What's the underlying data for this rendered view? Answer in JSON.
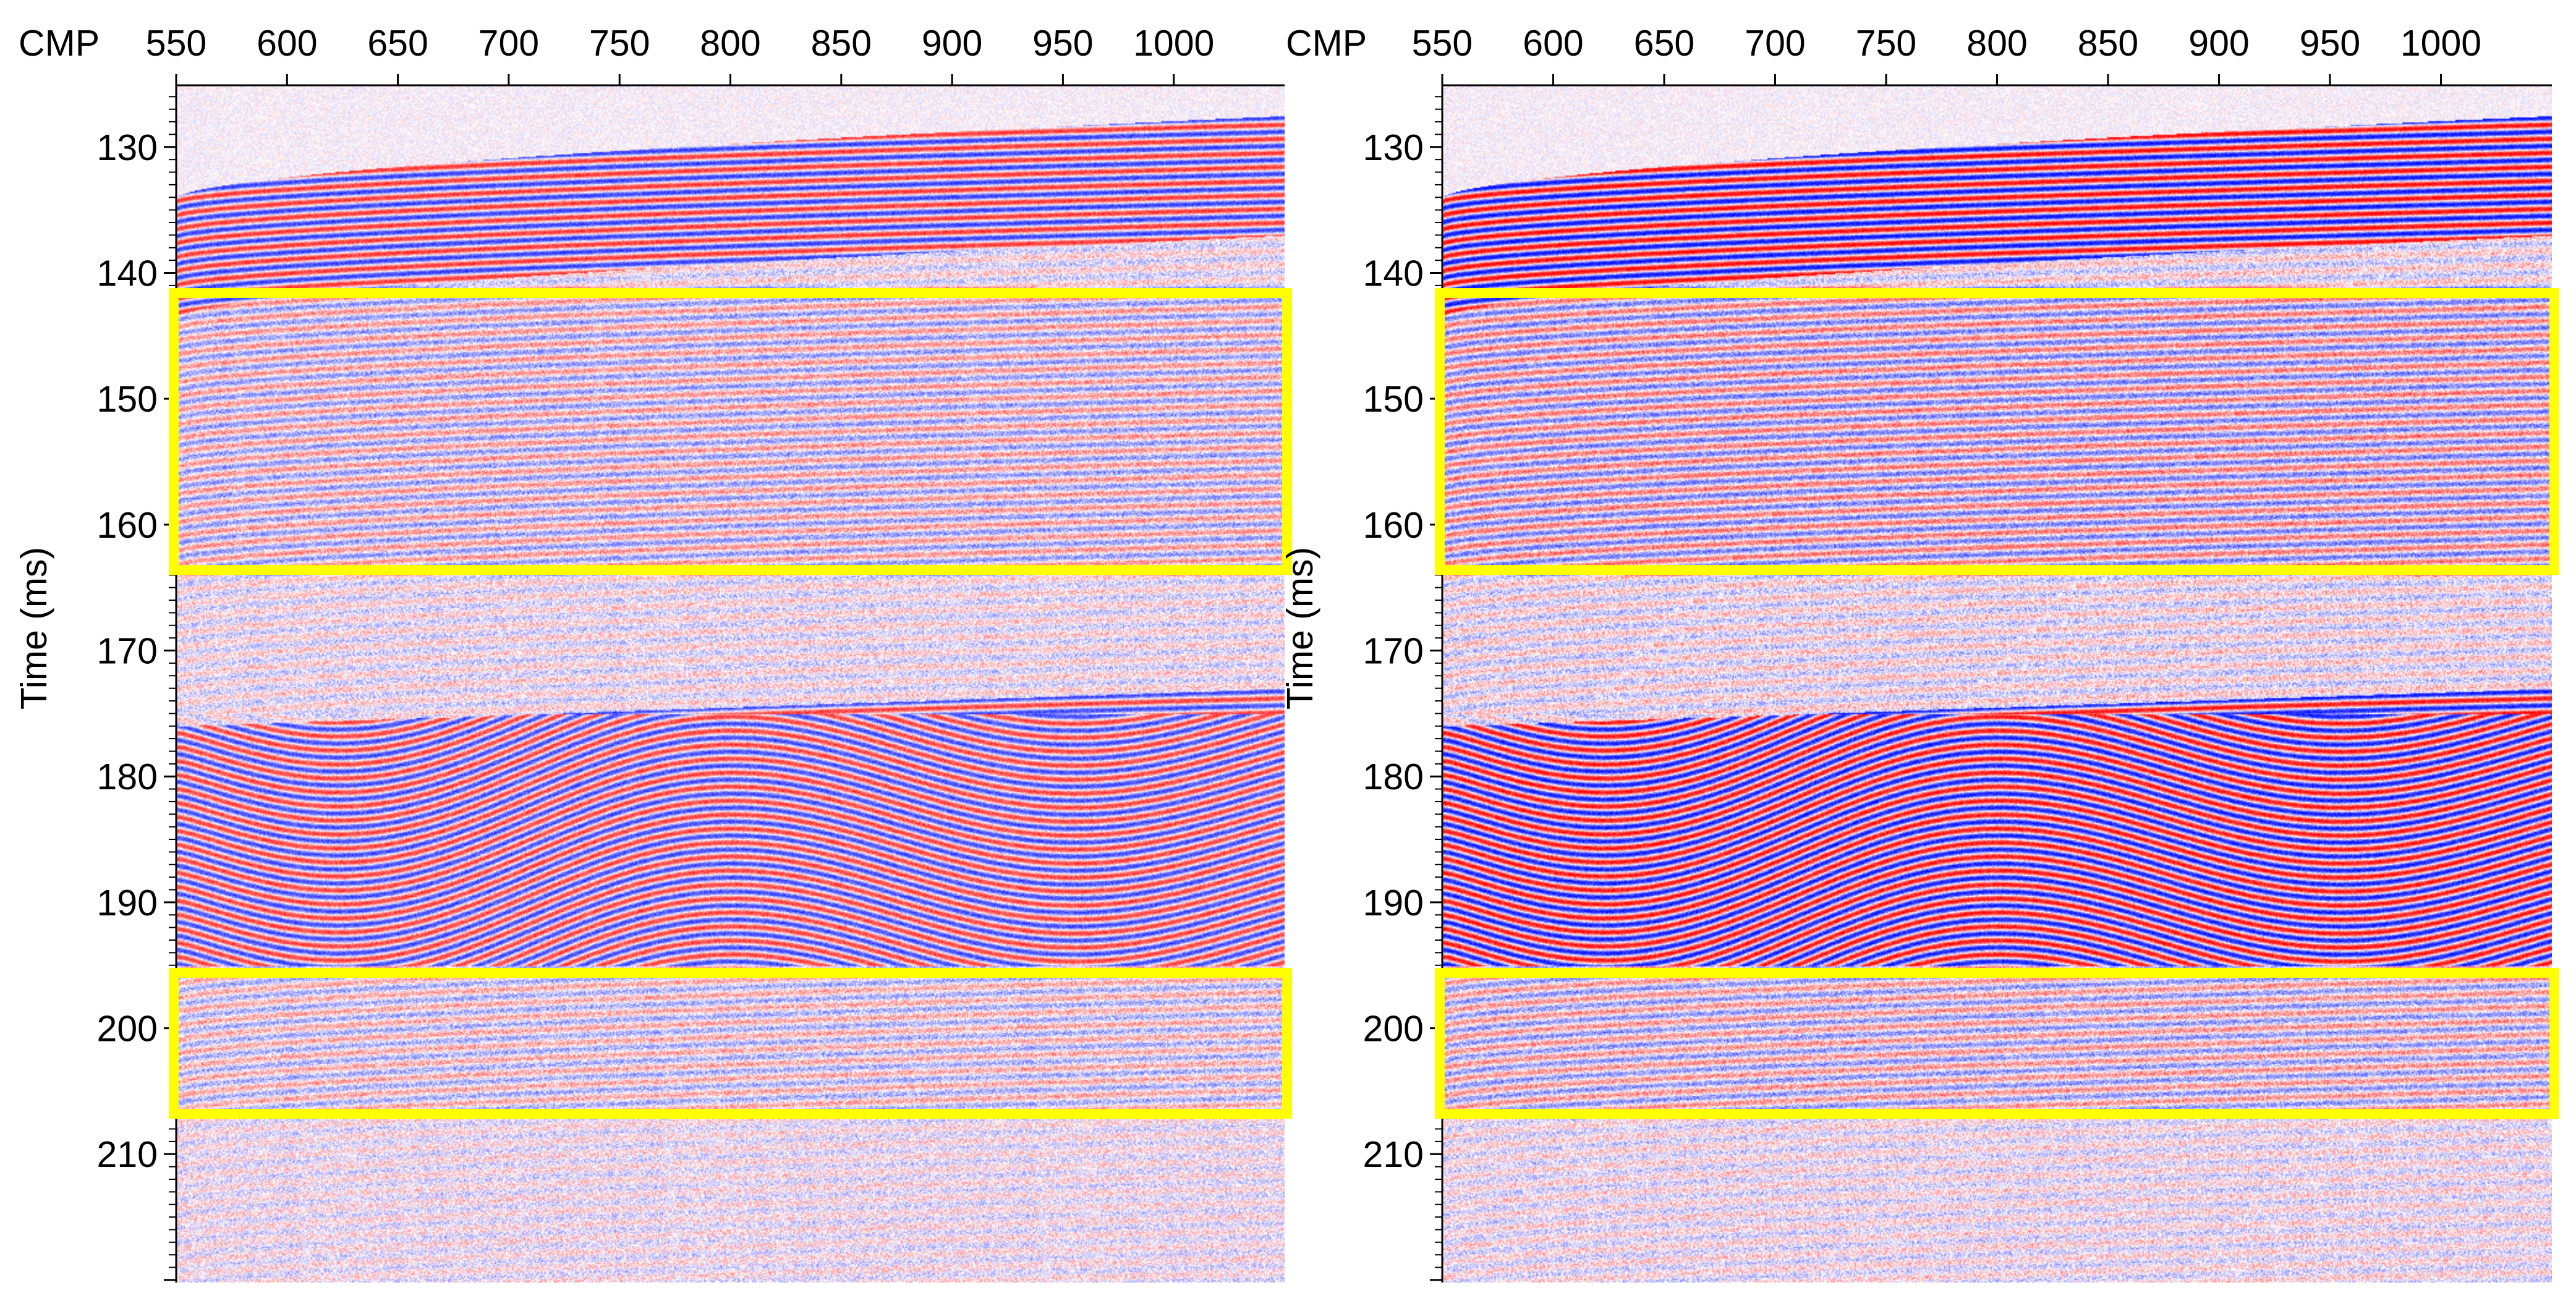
{
  "figure": {
    "panels": [
      {
        "id": "left",
        "x_axis": {
          "label": "CMP",
          "tick_values": [
            550,
            600,
            650,
            700,
            750,
            800,
            850,
            900,
            950,
            1000
          ],
          "tick_labels": [
            "550",
            "600",
            "650",
            "700",
            "750",
            "800",
            "850",
            "900",
            "950",
            "1000"
          ],
          "range": [
            550,
            1050
          ]
        },
        "y_axis": {
          "label": "Time (ms)",
          "tick_values": [
            130,
            140,
            150,
            160,
            170,
            180,
            190,
            200,
            210
          ],
          "tick_labels": [
            "130",
            "140",
            "150",
            "160",
            "170",
            "180",
            "190",
            "200",
            "210"
          ],
          "range": [
            125.1,
            220.2
          ]
        },
        "highlight_boxes": [
          {
            "name": "upper",
            "time_range_ms": [
              141.6,
              163.6
            ]
          },
          {
            "name": "lower",
            "time_range_ms": [
              195.6,
              206.8
            ]
          }
        ],
        "reflector_strength": 0.8
      },
      {
        "id": "right",
        "x_axis": {
          "label": "CMP",
          "tick_values": [
            550,
            600,
            650,
            700,
            750,
            800,
            850,
            900,
            950,
            1000
          ],
          "tick_labels": [
            "550",
            "600",
            "650",
            "700",
            "750",
            "800",
            "850",
            "900",
            "950",
            "1000"
          ],
          "range": [
            550,
            1050
          ]
        },
        "y_axis": {
          "label": "Time (ms)",
          "tick_values": [
            130,
            140,
            150,
            160,
            170,
            180,
            190,
            200,
            210
          ],
          "tick_labels": [
            "130",
            "140",
            "150",
            "160",
            "170",
            "180",
            "190",
            "200",
            "210"
          ],
          "range": [
            125.1,
            220.2
          ]
        },
        "highlight_boxes": [
          {
            "name": "upper",
            "time_range_ms": [
              141.6,
              163.6
            ]
          },
          {
            "name": "lower",
            "time_range_ms": [
              195.6,
              206.8
            ]
          }
        ],
        "reflector_strength": 1.0
      }
    ],
    "colors": {
      "positive_amplitude": "#e30000",
      "negative_amplitude": "#0015d6",
      "background": "#ffffff",
      "highlight_box": "#ffff00",
      "axis": "#000000"
    }
  }
}
